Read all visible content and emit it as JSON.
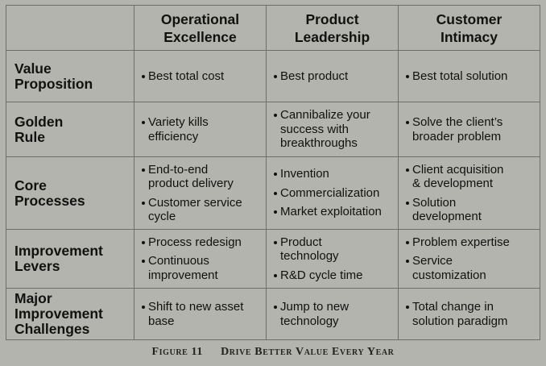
{
  "columns": [
    {
      "line1": "Operational",
      "line2": "Excellence"
    },
    {
      "line1": "Product",
      "line2": "Leadership"
    },
    {
      "line1": "Customer",
      "line2": "Intimacy"
    }
  ],
  "rows": [
    {
      "title": [
        "Value",
        "Proposition"
      ],
      "cells": [
        [
          [
            "Best total cost"
          ]
        ],
        [
          [
            "Best product"
          ]
        ],
        [
          [
            "Best total solution"
          ]
        ]
      ]
    },
    {
      "title": [
        "Golden",
        "Rule"
      ],
      "cells": [
        [
          [
            "Variety kills",
            "efficiency"
          ]
        ],
        [
          [
            "Cannibalize your",
            "success with",
            "breakthroughs"
          ]
        ],
        [
          [
            "Solve the client’s",
            "broader problem"
          ]
        ]
      ]
    },
    {
      "title": [
        "Core",
        "Processes"
      ],
      "cells": [
        [
          [
            "End-to-end",
            "product delivery"
          ],
          [
            "Customer service",
            "cycle"
          ]
        ],
        [
          [
            "Invention"
          ],
          [
            "Commercialization"
          ],
          [
            "Market exploitation"
          ]
        ],
        [
          [
            "Client acquisition",
            "& development"
          ],
          [
            "Solution",
            "development"
          ]
        ]
      ]
    },
    {
      "title": [
        "Improvement",
        "Levers"
      ],
      "cells": [
        [
          [
            "Process redesign"
          ],
          [
            "Continuous",
            "improvement"
          ]
        ],
        [
          [
            "Product",
            "technology"
          ],
          [
            "R&D cycle time"
          ]
        ],
        [
          [
            "Problem expertise"
          ],
          [
            "Service",
            "customization"
          ]
        ]
      ]
    },
    {
      "title": [
        "Major",
        "Improvement",
        "Challenges"
      ],
      "cells": [
        [
          [
            "Shift to new asset",
            "base"
          ]
        ],
        [
          [
            "Jump to new",
            "technology"
          ]
        ],
        [
          [
            "Total change in",
            "solution paradigm"
          ]
        ]
      ]
    }
  ],
  "caption": {
    "number": "Figure 11",
    "title": "Drive Better Value Every Year"
  }
}
